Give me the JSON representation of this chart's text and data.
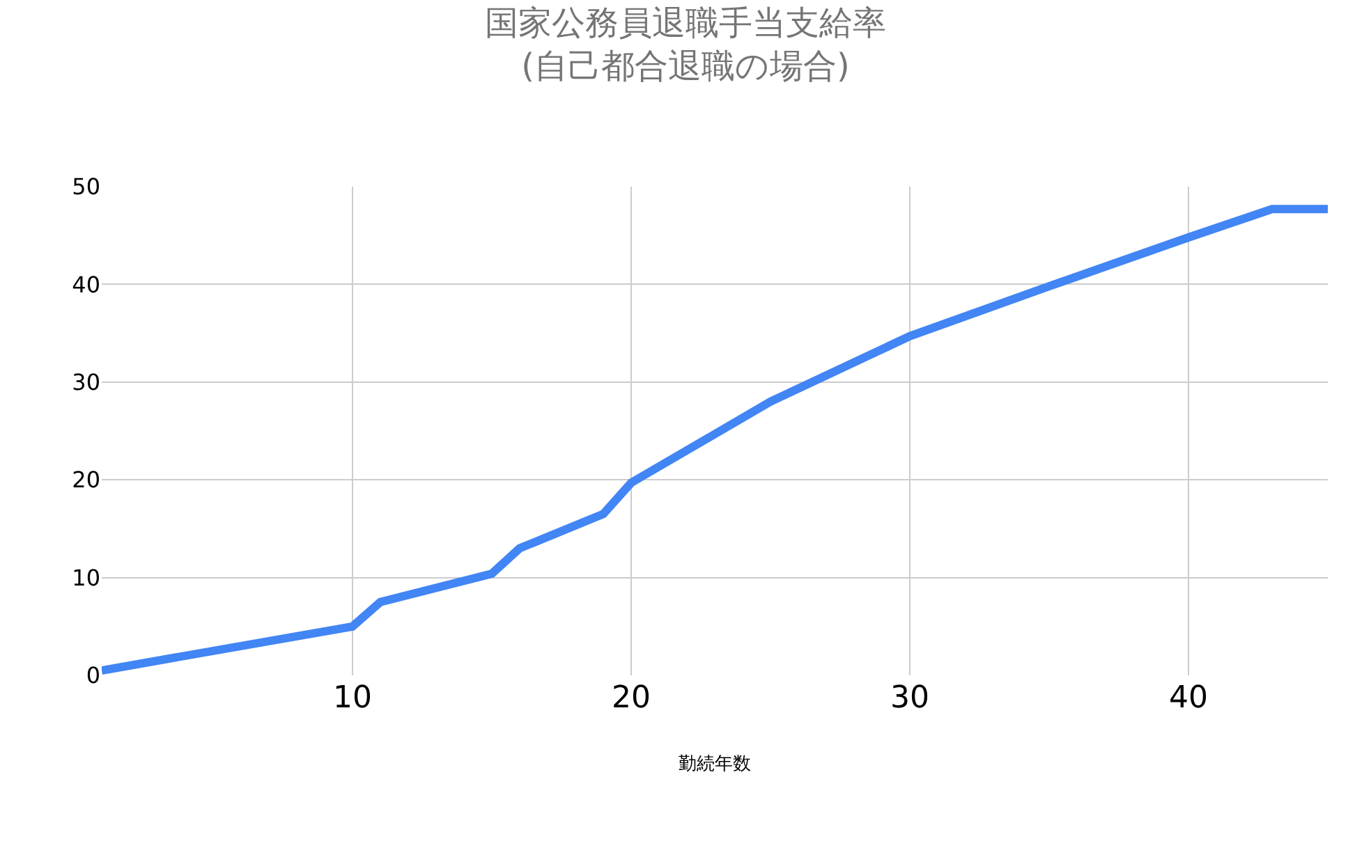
{
  "chart_data": {
    "type": "line",
    "title": "国家公務員退職手当支給率\n(自己都合退職の場合)",
    "xlabel": "勤続年数",
    "x": [
      1,
      10,
      11,
      15,
      16,
      19,
      20,
      25,
      30,
      35,
      40,
      43,
      45
    ],
    "series": [
      {
        "color": "#4285f4",
        "values": [
          0.5,
          5.0,
          7.5,
          10.4,
          13.0,
          16.5,
          19.7,
          28.0,
          34.7,
          39.8,
          44.8,
          47.7,
          47.7
        ]
      }
    ],
    "xlim": [
      1,
      45
    ],
    "xticks": [
      10,
      20,
      30,
      40
    ],
    "ylim": [
      0,
      50
    ],
    "yticks": [
      0,
      10,
      20,
      30,
      40,
      50
    ],
    "grid": true,
    "marker": "none",
    "line_style": "solid"
  }
}
